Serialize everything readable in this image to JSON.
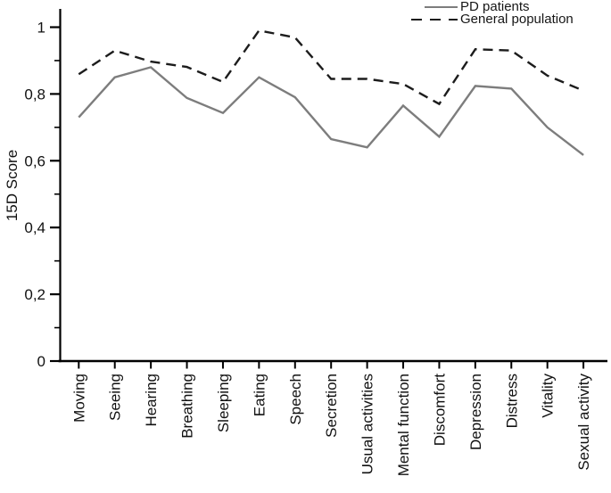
{
  "chart_data": {
    "type": "line",
    "title": "",
    "xlabel": "",
    "ylabel": "15D Score",
    "grid": false,
    "legend_position": "top-right",
    "ylim": [
      0,
      1.055
    ],
    "y_ticks": [
      0,
      0.2,
      0.4,
      0.6,
      0.8,
      1
    ],
    "y_tick_labels": [
      "0",
      "0,2",
      "0,4",
      "0,6",
      "0,8",
      "1"
    ],
    "y_minor_ticks": [
      0.1,
      0.3,
      0.5,
      0.7,
      0.9
    ],
    "categories": [
      "Moving",
      "Seeing",
      "Hearing",
      "Breathing",
      "Sleeping",
      "Eating",
      "Speech",
      "Secretion",
      "Usual activities",
      "Mental function",
      "Discomfort",
      "Depression",
      "Distress",
      "Vitality",
      "Sexual activity"
    ],
    "series": [
      {
        "name": "PD patients",
        "style": "solid",
        "color": "#7d7d7d",
        "values": [
          0.73,
          0.85,
          0.88,
          0.788,
          0.743,
          0.85,
          0.79,
          0.665,
          0.64,
          0.765,
          0.672,
          0.824,
          0.816,
          0.7,
          0.617
        ]
      },
      {
        "name": "General population",
        "style": "dashed",
        "color": "#1c1c1c",
        "values": [
          0.859,
          0.93,
          0.897,
          0.881,
          0.836,
          0.99,
          0.969,
          0.845,
          0.845,
          0.83,
          0.77,
          0.934,
          0.93,
          0.855,
          0.81
        ]
      }
    ]
  }
}
